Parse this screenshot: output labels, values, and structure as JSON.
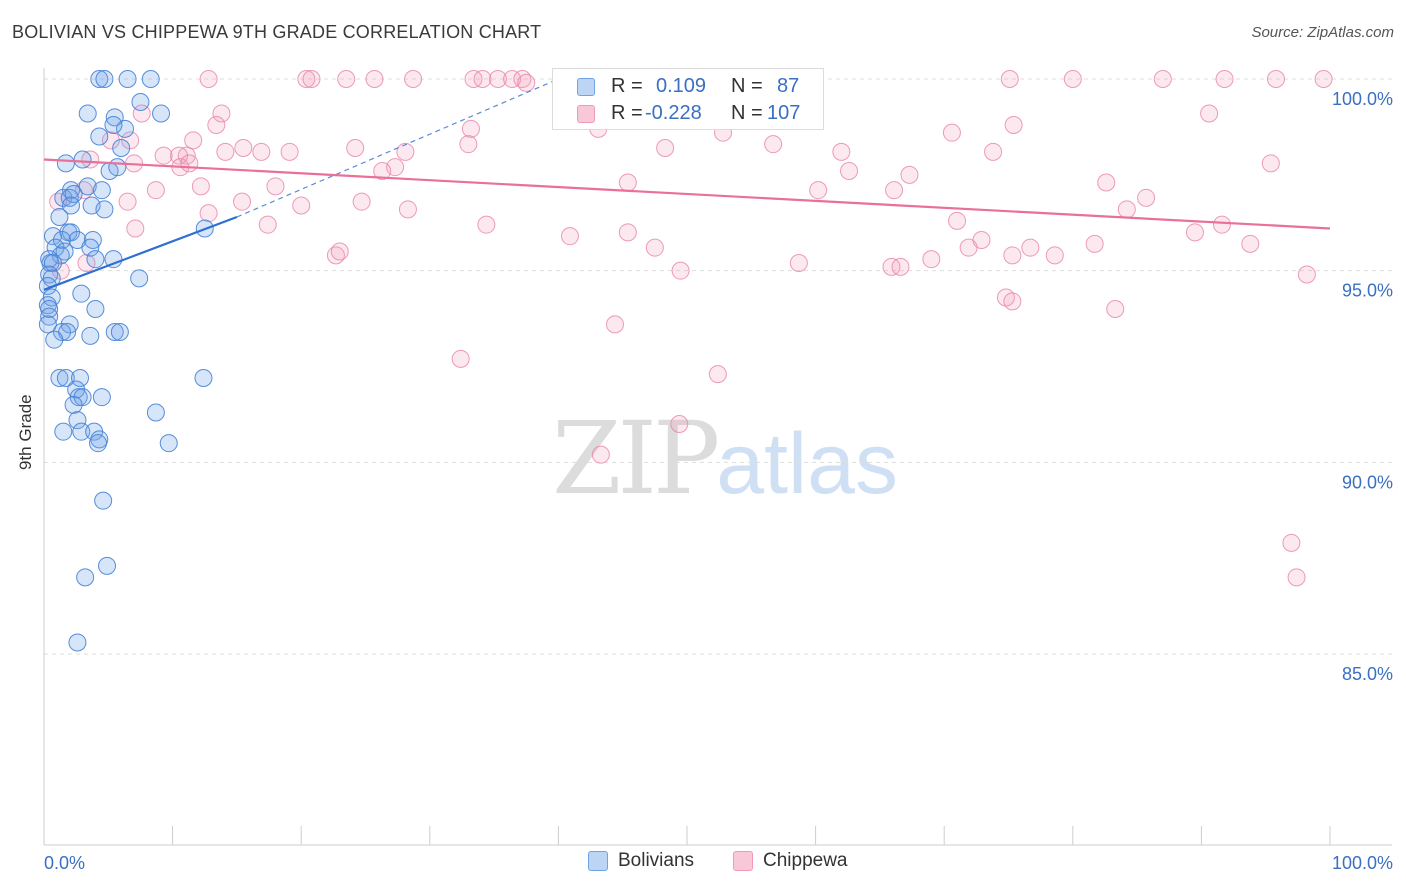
{
  "title": "BOLIVIAN VS CHIPPEWA 9TH GRADE CORRELATION CHART",
  "source": "Source: ZipAtlas.com",
  "watermark": {
    "zip": "ZIP",
    "atlas": "atlas"
  },
  "colors": {
    "bolivians": "#6fa3e6",
    "chippewa": "#f09ab8",
    "bolivians_line": "#2e6fd0",
    "chippewa_line": "#e8709a",
    "axis_text": "#3a6fc4"
  },
  "legend": {
    "rows": [
      {
        "r_label": "R = ",
        "r_value": "0.109",
        "n_label": "N = ",
        "n_value": "87"
      },
      {
        "r_label": "R = ",
        "r_value": "-0.228",
        "n_label": "N = ",
        "n_value": "107"
      }
    ]
  },
  "chart_data": {
    "type": "scatter",
    "title": "BOLIVIAN VS CHIPPEWA 9TH GRADE CORRELATION CHART",
    "xlabel": "",
    "ylabel": "9th Grade",
    "x_tick_labels": [
      "0.0%",
      "100.0%"
    ],
    "y_tick_labels": [
      "100.0%",
      "95.0%",
      "90.0%",
      "85.0%"
    ],
    "y_ticks": [
      100,
      95,
      90,
      85
    ],
    "xlim": [
      0,
      100
    ],
    "ylim": [
      80,
      100.4
    ],
    "grid": true,
    "legend_placement": "top-center",
    "series": [
      {
        "name": "Bolivians",
        "trend": {
          "x0": 0,
          "y0": 94.5,
          "x1": 15,
          "y1": 96.4,
          "dashed_to_x": 40,
          "dashed_to_y": 100.0
        },
        "points": [
          [
            4.3,
            100
          ],
          [
            4.7,
            100
          ],
          [
            6.5,
            100
          ],
          [
            8.3,
            100
          ],
          [
            7.5,
            99.4
          ],
          [
            3.4,
            99.1
          ],
          [
            5.5,
            99.0
          ],
          [
            9.1,
            99.1
          ],
          [
            6.3,
            98.7
          ],
          [
            5.4,
            98.8
          ],
          [
            4.3,
            98.5
          ],
          [
            6.0,
            98.2
          ],
          [
            3.0,
            97.9
          ],
          [
            1.7,
            97.8
          ],
          [
            5.1,
            97.6
          ],
          [
            5.7,
            97.7
          ],
          [
            3.4,
            97.2
          ],
          [
            2.1,
            97.1
          ],
          [
            1.5,
            96.9
          ],
          [
            2.0,
            96.9
          ],
          [
            4.5,
            97.1
          ],
          [
            2.3,
            97.0
          ],
          [
            3.7,
            96.7
          ],
          [
            2.1,
            96.7
          ],
          [
            4.7,
            96.6
          ],
          [
            1.2,
            96.4
          ],
          [
            1.9,
            96.0
          ],
          [
            2.1,
            96.0
          ],
          [
            0.7,
            95.9
          ],
          [
            1.4,
            95.8
          ],
          [
            2.6,
            95.8
          ],
          [
            3.8,
            95.8
          ],
          [
            3.6,
            95.6
          ],
          [
            0.9,
            95.6
          ],
          [
            1.6,
            95.5
          ],
          [
            1.3,
            95.4
          ],
          [
            0.4,
            95.3
          ],
          [
            5.4,
            95.3
          ],
          [
            4.0,
            95.3
          ],
          [
            0.5,
            95.2
          ],
          [
            0.7,
            95.2
          ],
          [
            12.5,
            96.1
          ],
          [
            0.4,
            94.9
          ],
          [
            0.6,
            94.8
          ],
          [
            7.4,
            94.8
          ],
          [
            0.3,
            94.6
          ],
          [
            2.9,
            94.4
          ],
          [
            0.6,
            94.3
          ],
          [
            0.3,
            94.1
          ],
          [
            0.4,
            94.0
          ],
          [
            4.0,
            94.0
          ],
          [
            0.4,
            93.8
          ],
          [
            0.3,
            93.6
          ],
          [
            2.0,
            93.6
          ],
          [
            1.4,
            93.4
          ],
          [
            1.8,
            93.4
          ],
          [
            5.5,
            93.4
          ],
          [
            5.9,
            93.4
          ],
          [
            0.8,
            93.2
          ],
          [
            3.6,
            93.3
          ],
          [
            1.2,
            92.2
          ],
          [
            1.7,
            92.2
          ],
          [
            2.8,
            92.2
          ],
          [
            12.4,
            92.2
          ],
          [
            2.5,
            91.9
          ],
          [
            4.5,
            91.7
          ],
          [
            2.7,
            91.7
          ],
          [
            3.0,
            91.7
          ],
          [
            2.3,
            91.5
          ],
          [
            8.7,
            91.3
          ],
          [
            2.6,
            91.1
          ],
          [
            1.5,
            90.8
          ],
          [
            2.9,
            90.8
          ],
          [
            3.9,
            90.8
          ],
          [
            4.3,
            90.6
          ],
          [
            9.7,
            90.5
          ],
          [
            4.2,
            90.5
          ],
          [
            4.6,
            89.0
          ],
          [
            4.9,
            87.3
          ],
          [
            3.2,
            87.0
          ],
          [
            2.6,
            85.3
          ]
        ]
      },
      {
        "name": "Chippewa",
        "trend": {
          "x0": 0,
          "y0": 97.9,
          "x1": 100,
          "y1": 96.1
        },
        "points": [
          [
            12.8,
            100
          ],
          [
            20.4,
            100
          ],
          [
            20.8,
            100
          ],
          [
            23.5,
            100
          ],
          [
            25.7,
            100
          ],
          [
            28.7,
            100
          ],
          [
            33.4,
            100
          ],
          [
            34.1,
            100
          ],
          [
            35.3,
            100
          ],
          [
            36.4,
            100
          ],
          [
            37.2,
            100
          ],
          [
            41.3,
            100
          ],
          [
            45.3,
            100
          ],
          [
            75.1,
            100
          ],
          [
            80.0,
            100
          ],
          [
            87.0,
            100
          ],
          [
            91.8,
            100
          ],
          [
            95.8,
            100
          ],
          [
            99.5,
            100
          ],
          [
            37.5,
            99.9
          ],
          [
            47.3,
            99.7
          ],
          [
            7.6,
            99.1
          ],
          [
            13.8,
            99.1
          ],
          [
            90.6,
            99.1
          ],
          [
            13.4,
            98.8
          ],
          [
            75.4,
            98.8
          ],
          [
            33.2,
            98.7
          ],
          [
            43.1,
            98.7
          ],
          [
            70.6,
            98.6
          ],
          [
            52.8,
            98.6
          ],
          [
            6.7,
            98.4
          ],
          [
            11.6,
            98.4
          ],
          [
            15.5,
            98.2
          ],
          [
            16.9,
            98.1
          ],
          [
            11.1,
            98.0
          ],
          [
            9.3,
            98.0
          ],
          [
            10.5,
            98.0
          ],
          [
            14.1,
            98.1
          ],
          [
            28.1,
            98.1
          ],
          [
            33.0,
            98.3
          ],
          [
            24.2,
            98.2
          ],
          [
            19.1,
            98.1
          ],
          [
            5.2,
            98.4
          ],
          [
            56.7,
            98.3
          ],
          [
            62.0,
            98.1
          ],
          [
            73.8,
            98.1
          ],
          [
            48.3,
            98.2
          ],
          [
            3.6,
            97.9
          ],
          [
            7.0,
            97.8
          ],
          [
            10.6,
            97.7
          ],
          [
            11.3,
            97.8
          ],
          [
            95.4,
            97.8
          ],
          [
            27.3,
            97.7
          ],
          [
            26.3,
            97.6
          ],
          [
            62.6,
            97.6
          ],
          [
            67.3,
            97.5
          ],
          [
            45.4,
            97.3
          ],
          [
            82.6,
            97.3
          ],
          [
            12.2,
            97.2
          ],
          [
            18.0,
            97.2
          ],
          [
            8.7,
            97.1
          ],
          [
            60.2,
            97.1
          ],
          [
            66.1,
            97.1
          ],
          [
            3.1,
            97.1
          ],
          [
            1.1,
            96.8
          ],
          [
            6.5,
            96.8
          ],
          [
            15.4,
            96.8
          ],
          [
            20.0,
            96.7
          ],
          [
            24.7,
            96.8
          ],
          [
            28.3,
            96.6
          ],
          [
            85.7,
            96.9
          ],
          [
            84.2,
            96.6
          ],
          [
            12.8,
            96.5
          ],
          [
            17.4,
            96.2
          ],
          [
            7.1,
            96.1
          ],
          [
            34.4,
            96.2
          ],
          [
            71.0,
            96.3
          ],
          [
            91.6,
            96.2
          ],
          [
            40.9,
            95.9
          ],
          [
            45.4,
            96.0
          ],
          [
            47.5,
            95.6
          ],
          [
            71.9,
            95.6
          ],
          [
            76.7,
            95.6
          ],
          [
            72.9,
            95.8
          ],
          [
            81.7,
            95.7
          ],
          [
            89.5,
            96.0
          ],
          [
            93.8,
            95.7
          ],
          [
            22.7,
            95.4
          ],
          [
            23.0,
            95.5
          ],
          [
            58.7,
            95.2
          ],
          [
            65.9,
            95.1
          ],
          [
            66.6,
            95.1
          ],
          [
            69.0,
            95.3
          ],
          [
            75.3,
            95.4
          ],
          [
            78.6,
            95.4
          ],
          [
            3.3,
            95.2
          ],
          [
            1.3,
            95.0
          ],
          [
            49.5,
            95.0
          ],
          [
            98.2,
            94.9
          ],
          [
            74.8,
            94.3
          ],
          [
            75.3,
            94.2
          ],
          [
            83.3,
            94.0
          ],
          [
            44.4,
            93.6
          ],
          [
            32.4,
            92.7
          ],
          [
            52.4,
            92.3
          ],
          [
            49.4,
            91.0
          ],
          [
            43.3,
            90.2
          ],
          [
            97.0,
            87.9
          ],
          [
            97.4,
            87.0
          ]
        ]
      }
    ]
  }
}
